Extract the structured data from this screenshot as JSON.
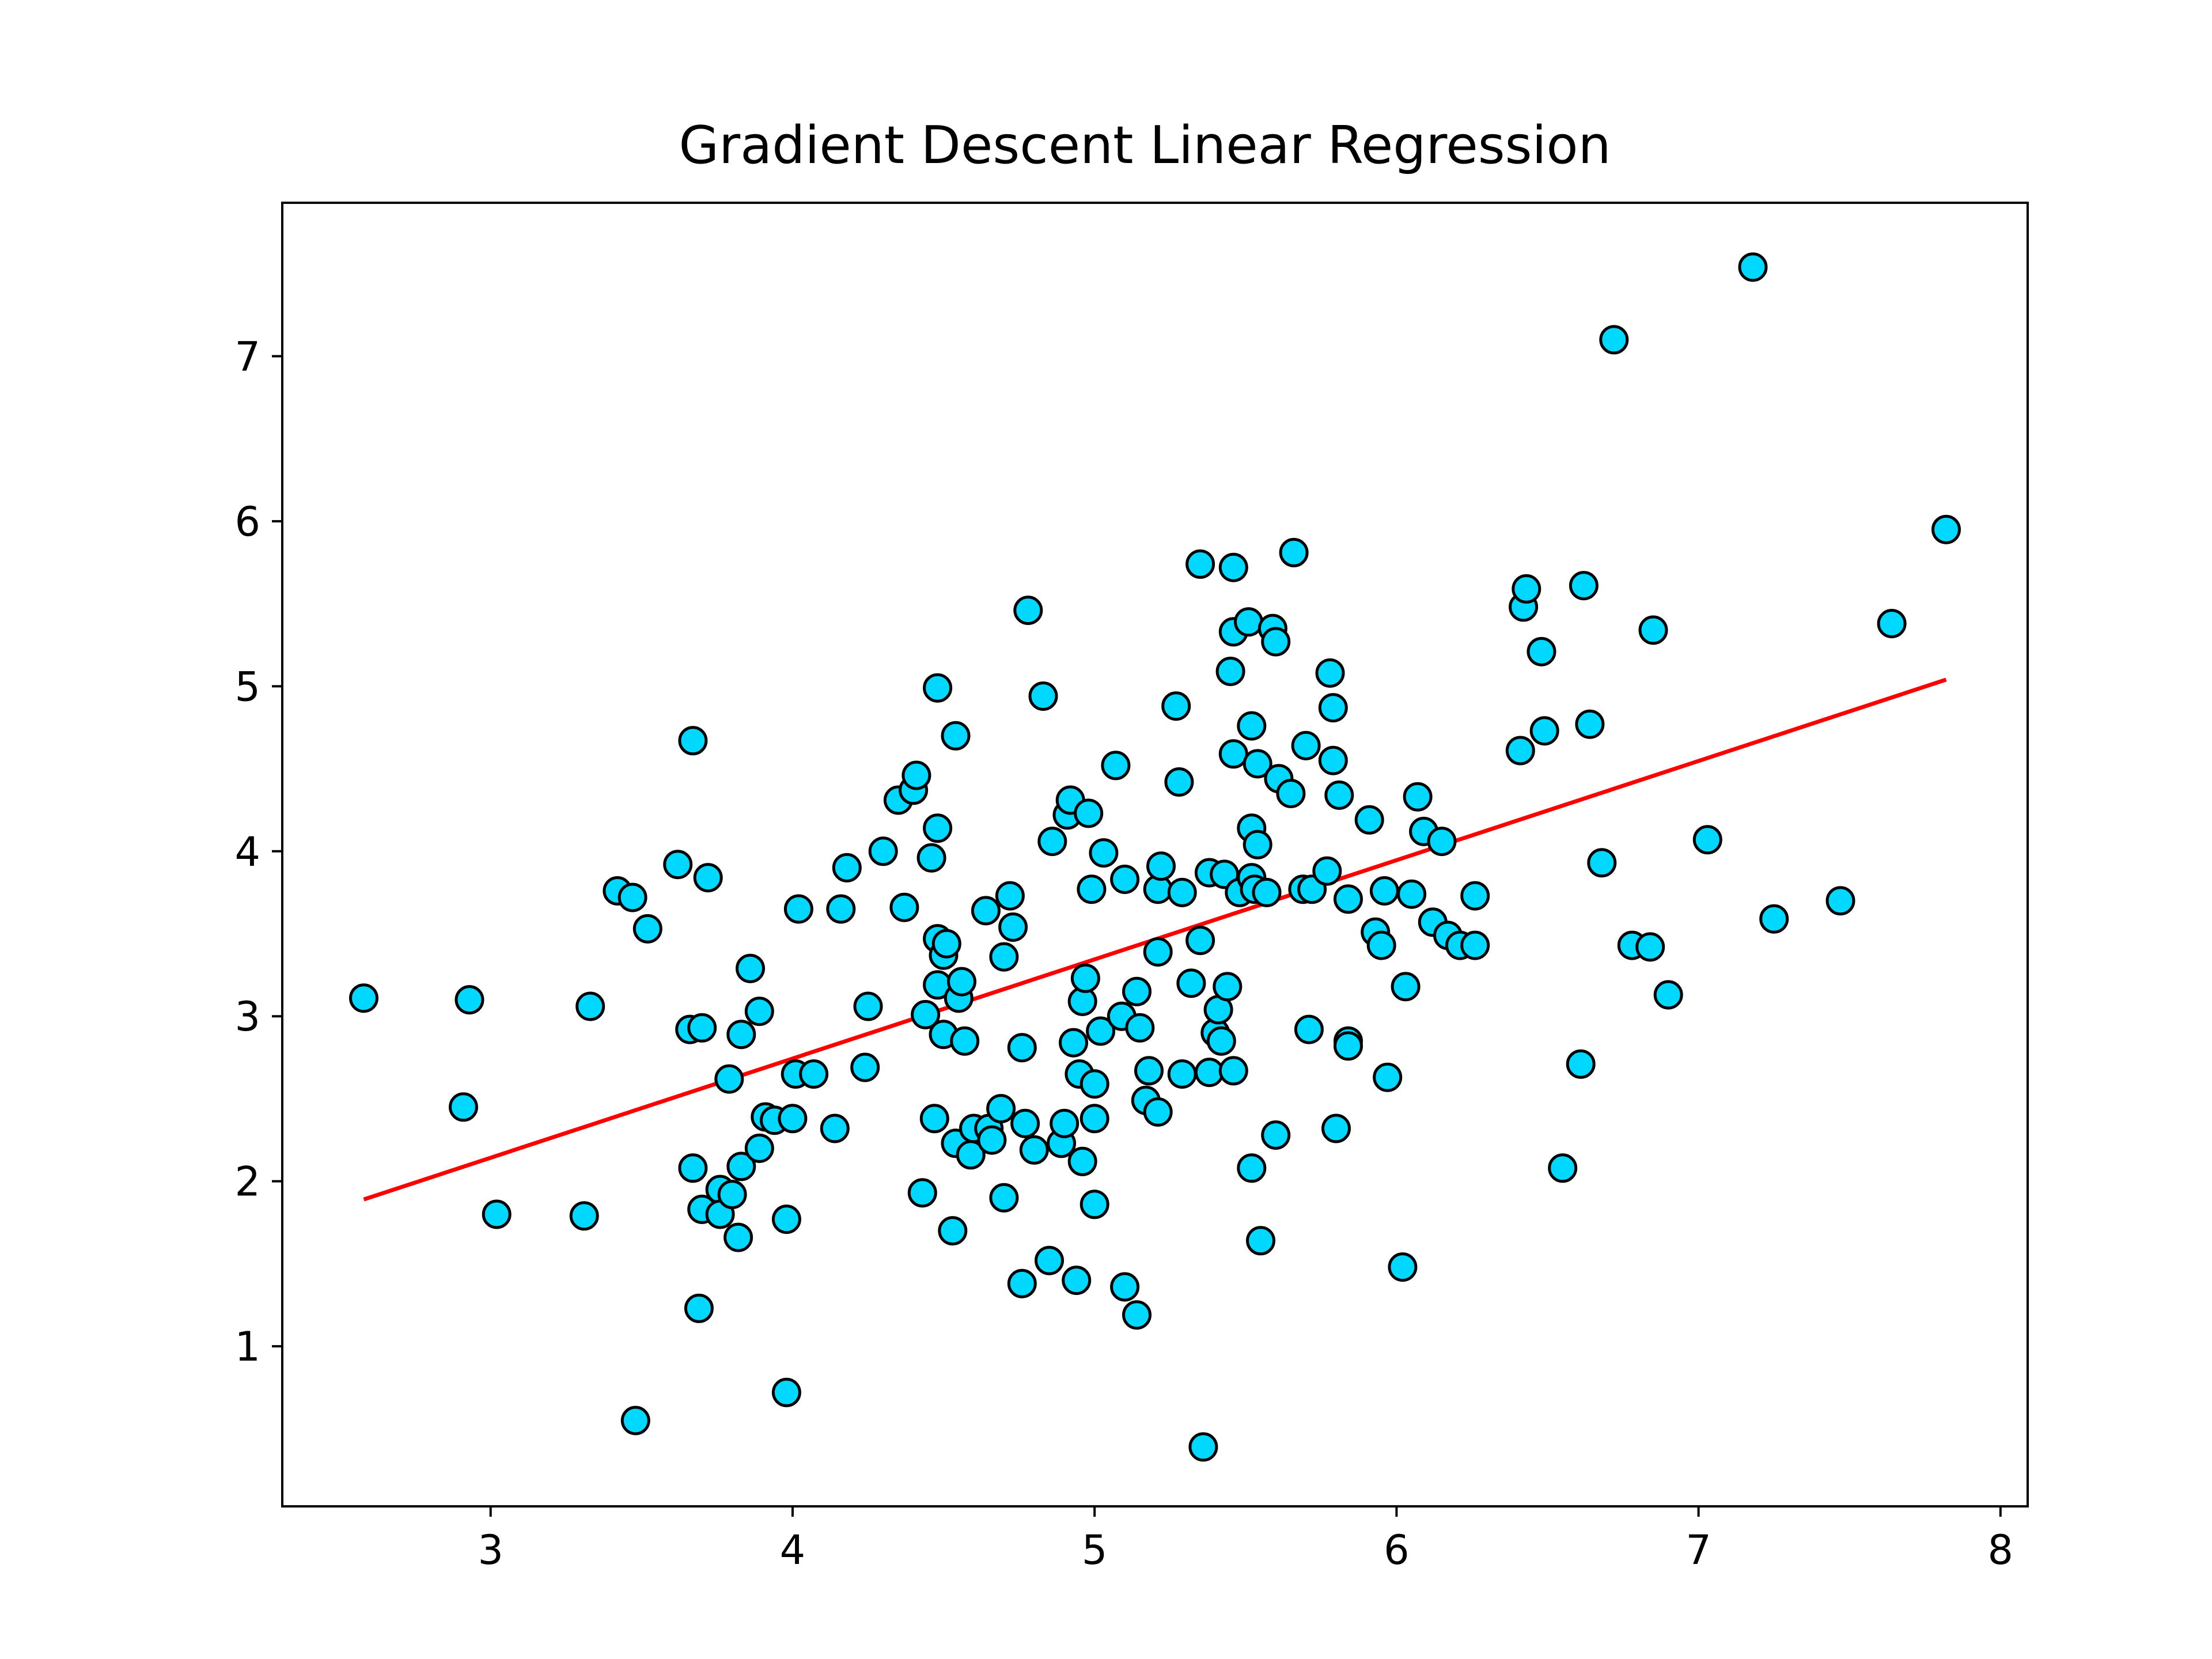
{
  "chart_data": {
    "type": "scatter",
    "title": "Gradient Descent Linear Regression",
    "xlabel": "",
    "ylabel": "",
    "xlim": [
      2.31,
      8.09
    ],
    "ylim": [
      0.03,
      7.93
    ],
    "xticks": [
      3,
      4,
      5,
      6,
      7,
      8
    ],
    "yticks": [
      1,
      2,
      3,
      4,
      5,
      6,
      7
    ],
    "grid": false,
    "legend": "none",
    "colors": {
      "marker_fill": "#00d8ff",
      "marker_edge": "#000000",
      "line": "#ff0000"
    },
    "series": [
      {
        "type": "scatter",
        "points": [
          [
            2.58,
            3.11
          ],
          [
            2.91,
            2.45
          ],
          [
            2.93,
            3.1
          ],
          [
            3.02,
            1.8
          ],
          [
            3.31,
            1.79
          ],
          [
            3.33,
            3.06
          ],
          [
            3.42,
            3.76
          ],
          [
            3.47,
            3.72
          ],
          [
            3.48,
            0.55
          ],
          [
            3.52,
            3.53
          ],
          [
            3.62,
            3.92
          ],
          [
            3.66,
            2.92
          ],
          [
            3.67,
            4.67
          ],
          [
            3.67,
            2.08
          ],
          [
            3.7,
            2.93
          ],
          [
            3.7,
            1.83
          ],
          [
            3.69,
            1.23
          ],
          [
            3.72,
            3.84
          ],
          [
            3.76,
            1.95
          ],
          [
            3.76,
            1.8
          ],
          [
            3.79,
            2.62
          ],
          [
            3.8,
            1.92
          ],
          [
            3.82,
            1.66
          ],
          [
            3.83,
            2.89
          ],
          [
            3.83,
            2.09
          ],
          [
            3.86,
            3.29
          ],
          [
            3.89,
            3.03
          ],
          [
            3.89,
            2.2
          ],
          [
            3.91,
            2.39
          ],
          [
            3.94,
            2.37
          ],
          [
            3.98,
            1.77
          ],
          [
            3.98,
            0.72
          ],
          [
            4.0,
            2.38
          ],
          [
            4.01,
            2.65
          ],
          [
            4.02,
            3.65
          ],
          [
            4.07,
            2.65
          ],
          [
            4.14,
            2.32
          ],
          [
            4.16,
            3.65
          ],
          [
            4.18,
            3.9
          ],
          [
            4.24,
            2.69
          ],
          [
            4.25,
            3.06
          ],
          [
            4.3,
            4.0
          ],
          [
            4.35,
            4.31
          ],
          [
            4.37,
            3.66
          ],
          [
            4.4,
            4.37
          ],
          [
            4.41,
            4.46
          ],
          [
            4.43,
            1.93
          ],
          [
            4.44,
            3.01
          ],
          [
            4.46,
            3.96
          ],
          [
            4.47,
            2.38
          ],
          [
            4.48,
            4.99
          ],
          [
            4.48,
            4.14
          ],
          [
            4.48,
            3.47
          ],
          [
            4.48,
            3.19
          ],
          [
            4.5,
            2.89
          ],
          [
            4.5,
            3.37
          ],
          [
            4.51,
            3.44
          ],
          [
            4.53,
            1.7
          ],
          [
            4.54,
            4.7
          ],
          [
            4.54,
            2.23
          ],
          [
            4.55,
            3.11
          ],
          [
            4.56,
            3.21
          ],
          [
            4.57,
            2.85
          ],
          [
            4.59,
            2.16
          ],
          [
            4.6,
            2.32
          ],
          [
            4.64,
            3.64
          ],
          [
            4.65,
            2.32
          ],
          [
            4.66,
            2.25
          ],
          [
            4.69,
            2.44
          ],
          [
            4.7,
            1.9
          ],
          [
            4.7,
            3.36
          ],
          [
            4.72,
            3.73
          ],
          [
            4.73,
            3.54
          ],
          [
            4.76,
            2.81
          ],
          [
            4.76,
            1.38
          ],
          [
            4.77,
            2.35
          ],
          [
            4.78,
            5.46
          ],
          [
            4.8,
            2.19
          ],
          [
            4.83,
            4.94
          ],
          [
            4.85,
            1.52
          ],
          [
            4.86,
            4.06
          ],
          [
            4.89,
            2.23
          ],
          [
            4.9,
            2.35
          ],
          [
            4.91,
            4.22
          ],
          [
            4.92,
            4.31
          ],
          [
            4.93,
            2.84
          ],
          [
            4.94,
            1.4
          ],
          [
            4.95,
            2.65
          ],
          [
            4.96,
            3.09
          ],
          [
            4.96,
            2.12
          ],
          [
            4.97,
            3.23
          ],
          [
            4.98,
            4.23
          ],
          [
            4.99,
            3.77
          ],
          [
            5.0,
            2.38
          ],
          [
            5.0,
            2.59
          ],
          [
            5.0,
            1.86
          ],
          [
            5.02,
            2.91
          ],
          [
            5.03,
            3.99
          ],
          [
            5.07,
            4.52
          ],
          [
            5.09,
            3.0
          ],
          [
            5.1,
            3.83
          ],
          [
            5.1,
            1.36
          ],
          [
            5.14,
            1.19
          ],
          [
            5.14,
            3.15
          ],
          [
            5.15,
            2.93
          ],
          [
            5.17,
            2.49
          ],
          [
            5.18,
            2.67
          ],
          [
            5.21,
            2.42
          ],
          [
            5.21,
            3.39
          ],
          [
            5.21,
            3.77
          ],
          [
            5.22,
            3.91
          ],
          [
            5.27,
            4.88
          ],
          [
            5.28,
            4.42
          ],
          [
            5.29,
            2.65
          ],
          [
            5.29,
            3.75
          ],
          [
            5.32,
            3.2
          ],
          [
            5.35,
            3.46
          ],
          [
            5.35,
            5.74
          ],
          [
            5.36,
            0.39
          ],
          [
            5.38,
            2.66
          ],
          [
            5.38,
            3.87
          ],
          [
            5.4,
            2.9
          ],
          [
            5.41,
            3.04
          ],
          [
            5.42,
            2.85
          ],
          [
            5.43,
            3.86
          ],
          [
            5.44,
            3.18
          ],
          [
            5.45,
            5.09
          ],
          [
            5.46,
            2.67
          ],
          [
            5.46,
            4.59
          ],
          [
            5.46,
            5.33
          ],
          [
            5.46,
            5.72
          ],
          [
            5.48,
            3.75
          ],
          [
            5.51,
            5.39
          ],
          [
            5.52,
            2.08
          ],
          [
            5.52,
            4.14
          ],
          [
            5.52,
            4.76
          ],
          [
            5.52,
            3.84
          ],
          [
            5.53,
            3.77
          ],
          [
            5.54,
            4.53
          ],
          [
            5.54,
            4.04
          ],
          [
            5.55,
            1.64
          ],
          [
            5.57,
            3.75
          ],
          [
            5.59,
            5.35
          ],
          [
            5.6,
            5.27
          ],
          [
            5.6,
            2.28
          ],
          [
            5.61,
            4.44
          ],
          [
            5.65,
            4.35
          ],
          [
            5.66,
            5.81
          ],
          [
            5.69,
            3.77
          ],
          [
            5.7,
            4.64
          ],
          [
            5.71,
            2.92
          ],
          [
            5.72,
            3.77
          ],
          [
            5.77,
            3.88
          ],
          [
            5.78,
            5.08
          ],
          [
            5.79,
            4.87
          ],
          [
            5.79,
            4.55
          ],
          [
            5.8,
            2.32
          ],
          [
            5.81,
            4.34
          ],
          [
            5.84,
            2.85
          ],
          [
            5.84,
            2.82
          ],
          [
            5.84,
            3.71
          ],
          [
            5.91,
            4.19
          ],
          [
            5.93,
            3.51
          ],
          [
            5.95,
            3.43
          ],
          [
            5.96,
            3.76
          ],
          [
            5.97,
            2.63
          ],
          [
            6.02,
            1.48
          ],
          [
            6.03,
            3.18
          ],
          [
            6.05,
            3.74
          ],
          [
            6.07,
            4.33
          ],
          [
            6.09,
            4.12
          ],
          [
            6.12,
            3.57
          ],
          [
            6.15,
            4.06
          ],
          [
            6.17,
            3.49
          ],
          [
            6.21,
            3.43
          ],
          [
            6.26,
            3.73
          ],
          [
            6.26,
            3.43
          ],
          [
            6.41,
            4.61
          ],
          [
            6.42,
            5.48
          ],
          [
            6.43,
            5.59
          ],
          [
            6.48,
            5.21
          ],
          [
            6.49,
            4.73
          ],
          [
            6.55,
            2.08
          ],
          [
            6.61,
            2.71
          ],
          [
            6.62,
            5.61
          ],
          [
            6.64,
            4.77
          ],
          [
            6.68,
            3.93
          ],
          [
            6.72,
            7.1
          ],
          [
            6.78,
            3.43
          ],
          [
            6.84,
            3.42
          ],
          [
            6.85,
            5.34
          ],
          [
            6.9,
            3.13
          ],
          [
            7.03,
            4.07
          ],
          [
            7.18,
            7.54
          ],
          [
            7.25,
            3.59
          ],
          [
            7.47,
            3.7
          ],
          [
            7.64,
            5.38
          ],
          [
            7.82,
            5.95
          ]
        ]
      },
      {
        "type": "line",
        "x": [
          2.58,
          7.82
        ],
        "y": [
          1.89,
          5.04
        ]
      }
    ]
  }
}
